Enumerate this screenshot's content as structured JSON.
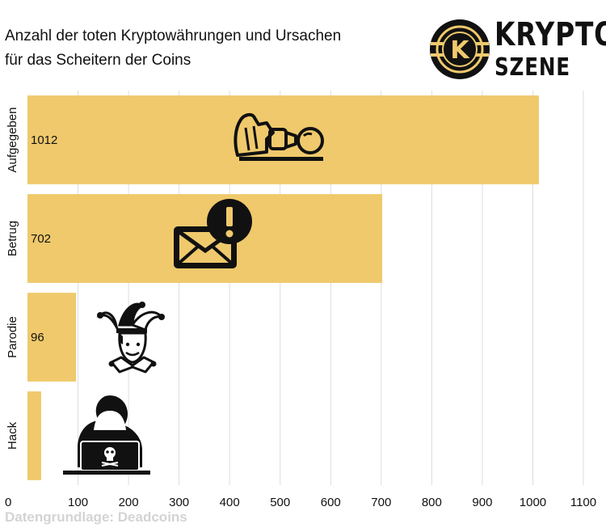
{
  "header": {
    "title_line1": "Anzahl der toten Kryptowährungen und Ursachen",
    "title_line2": "für das Scheitern der Coins"
  },
  "logo": {
    "line1": "KRYPTO",
    "line2": "SZENE",
    "emblem_letter": "K"
  },
  "footer": {
    "source": "Datengrundlage: Deadcoins"
  },
  "colors": {
    "bar": "#efc96c",
    "grid": "#dddddd",
    "text": "#111111",
    "source": "#d3d3d3"
  },
  "icons": [
    "fallen-pawn-icon",
    "scam-mail-icon",
    "jester-icon",
    "hacker-icon"
  ],
  "chart_data": {
    "type": "bar",
    "orientation": "horizontal",
    "title": "Anzahl der toten Kryptowährungen und Ursachen für das Scheitern der Coins",
    "categories": [
      "Aufgegeben",
      "Betrug",
      "Parodie",
      "Hack"
    ],
    "values": [
      1012,
      702,
      96,
      27
    ],
    "data_labels": [
      "1012",
      "702",
      "96",
      ""
    ],
    "xlim": [
      0,
      1100
    ],
    "xticks": [
      0,
      100,
      200,
      300,
      400,
      500,
      600,
      700,
      800,
      900,
      1000,
      1100
    ],
    "grid": true,
    "legend": "none"
  }
}
